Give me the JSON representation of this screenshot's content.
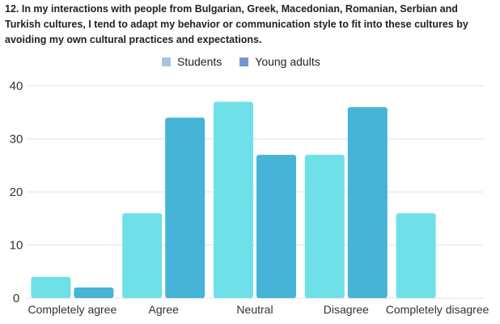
{
  "chart_data": {
    "type": "bar",
    "title": "12. In my interactions with people from Bulgarian, Greek, Macedonian, Romanian, Serbian and Turkish cultures, I tend to adapt my behavior or communication style to fit into these cultures by avoiding my own cultural practices and expectations.",
    "categories": [
      "Completely agree",
      "Agree",
      "Neutral",
      "Disagree",
      "Completely disagree"
    ],
    "series": [
      {
        "name": "Students",
        "values": [
          4,
          16,
          37,
          27,
          16
        ],
        "color": "#6fe0e8",
        "legend_color": "#a8c4e0"
      },
      {
        "name": "Young adults",
        "values": [
          2,
          34,
          27,
          36,
          0
        ],
        "color": "#45b4d6",
        "legend_color": "#7296d0"
      }
    ],
    "ylim": [
      0,
      40
    ],
    "yticks": [
      "0",
      "10",
      "20",
      "30",
      "40"
    ],
    "xlabel": "",
    "ylabel": "",
    "grid": true,
    "legend_position": "top"
  }
}
